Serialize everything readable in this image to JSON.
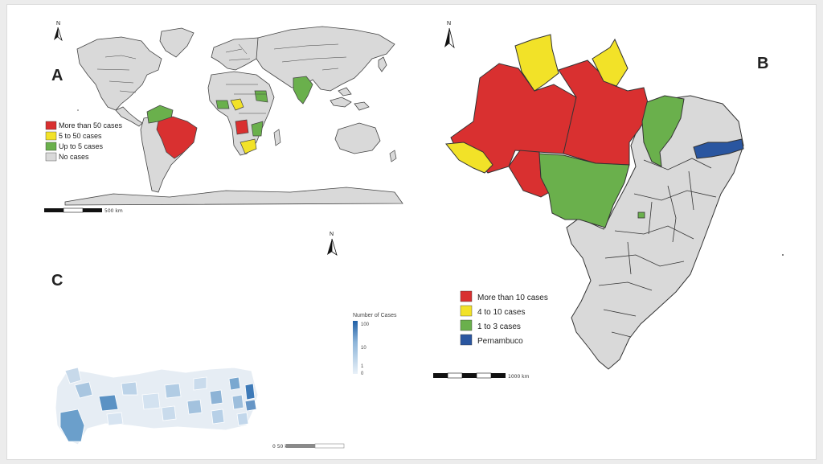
{
  "panels": {
    "A": {
      "letter": "A",
      "north": "N",
      "scale_label": "500 km",
      "legend": [
        {
          "label": "More than 50 cases",
          "color": "#d93030"
        },
        {
          "label": "5 to 50 cases",
          "color": "#f2e228"
        },
        {
          "label": "Up to 5 cases",
          "color": "#6ab04c"
        },
        {
          "label": "No cases",
          "color": "#d9d9d9"
        }
      ]
    },
    "B": {
      "letter": "B",
      "north": "N",
      "scale_label": "1000 km",
      "legend": [
        {
          "label": "More than 10 cases",
          "color": "#d93030"
        },
        {
          "label": "4 to 10 cases",
          "color": "#f2e228"
        },
        {
          "label": "1 to 3 cases",
          "color": "#6ab04c"
        },
        {
          "label": "Pernambuco",
          "color": "#2a56a0"
        }
      ]
    },
    "C": {
      "letter": "C",
      "north": "N",
      "scale_label": "0 50 km",
      "ramp_title": "Number of Cases",
      "ramp_ticks": [
        "100",
        "10",
        "1",
        "0"
      ]
    }
  },
  "icons": [
    "north-arrow-icon",
    "scale-bar-icon"
  ]
}
